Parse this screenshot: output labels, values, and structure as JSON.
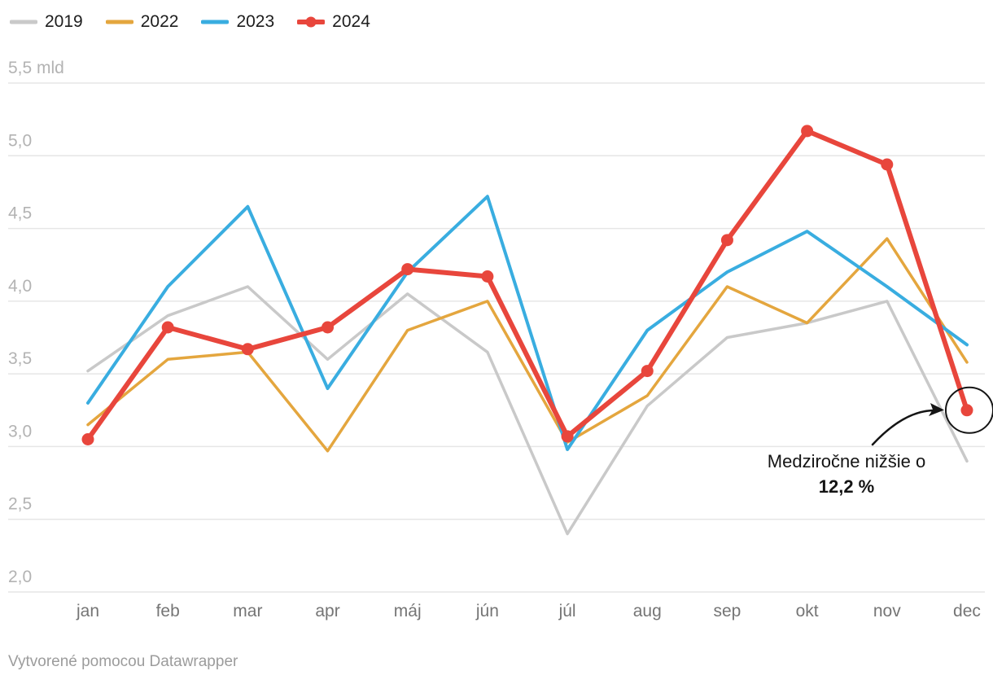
{
  "chart_data": {
    "type": "line",
    "title": "",
    "categories": [
      "jan",
      "feb",
      "mar",
      "apr",
      "máj",
      "jún",
      "júl",
      "aug",
      "sep",
      "okt",
      "nov",
      "dec"
    ],
    "series": [
      {
        "name": "2019",
        "color": "#c9c9c9",
        "stroke_width": 3.5,
        "markers": false,
        "values": [
          3.52,
          3.9,
          4.1,
          3.6,
          4.05,
          3.65,
          2.4,
          3.28,
          3.75,
          3.85,
          4.0,
          2.9
        ]
      },
      {
        "name": "2022",
        "color": "#e4a63e",
        "stroke_width": 3.5,
        "markers": false,
        "values": [
          3.15,
          3.6,
          3.65,
          2.97,
          3.8,
          4.0,
          3.03,
          3.35,
          4.1,
          3.85,
          4.43,
          3.58
        ]
      },
      {
        "name": "2023",
        "color": "#39ade0",
        "stroke_width": 4,
        "markers": false,
        "values": [
          3.3,
          4.1,
          4.65,
          3.4,
          4.2,
          4.72,
          2.98,
          3.8,
          4.2,
          4.48,
          4.1,
          3.7
        ]
      },
      {
        "name": "2024",
        "color": "#e8463c",
        "stroke_width": 6,
        "markers": true,
        "values": [
          3.05,
          3.82,
          3.67,
          3.82,
          4.22,
          4.17,
          3.07,
          3.52,
          4.42,
          5.17,
          4.94,
          3.25
        ]
      }
    ],
    "y_ticks": [
      {
        "label": "5,5 mld",
        "value": 5.5
      },
      {
        "label": "5,0",
        "value": 5.0
      },
      {
        "label": "4,5",
        "value": 4.5
      },
      {
        "label": "4,0",
        "value": 4.0
      },
      {
        "label": "3,5",
        "value": 3.5
      },
      {
        "label": "3,0",
        "value": 3.0
      },
      {
        "label": "2,5",
        "value": 2.5
      },
      {
        "label": "2,0",
        "value": 2.0
      }
    ],
    "ylim": [
      2.0,
      5.5
    ],
    "grid": true,
    "legend_position": "top-left",
    "annotation": {
      "text": "Medziročne nižšie o",
      "value_text": "12,2 %",
      "target": {
        "series": "2024",
        "category": "dec",
        "value": 3.25
      }
    },
    "footer": "Vytvorené pomocou Datawrapper"
  },
  "colors": {
    "background": "#ffffff",
    "grid": "#e6e6e6",
    "y_tick_label": "#b3b3b3",
    "x_tick_label": "#757575",
    "legend_text": "#1d1d1d",
    "annotation": "#141414",
    "footer_text": "#9c9c9c"
  }
}
